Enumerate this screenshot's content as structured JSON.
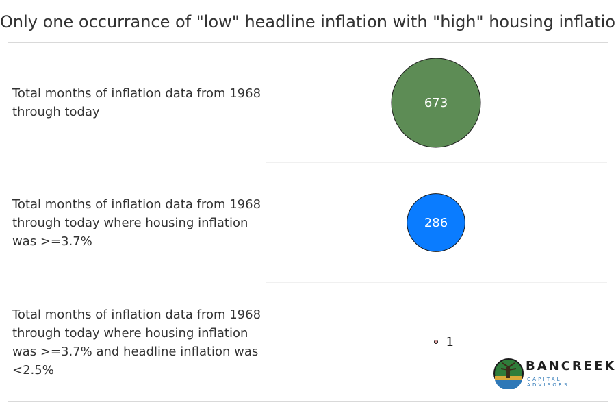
{
  "chart_data": {
    "type": "bubble",
    "title": "Only one occurrance of \"low\" headline inflation with \"high\" housing inflation",
    "categories": [
      "Total months of inflation data from 1968 through today",
      "Total months of inflation data from 1968 through today where housing inflation was >=3.7%",
      "Total months of inflation data from 1968 through today where housing inflation was >=3.7% and headline inflation was <2.5%"
    ],
    "values": [
      673,
      286,
      1
    ],
    "colors": [
      "#5d8c55",
      "#0a7cff",
      "#e3a5a5"
    ],
    "label_colors": [
      "#ffffff",
      "#ffffff",
      "#1a1a1a"
    ],
    "label_position": [
      "inside",
      "inside",
      "right"
    ]
  },
  "logo": {
    "name": "BANCREEK",
    "subtitle": "CAPITAL ADVISORS"
  }
}
